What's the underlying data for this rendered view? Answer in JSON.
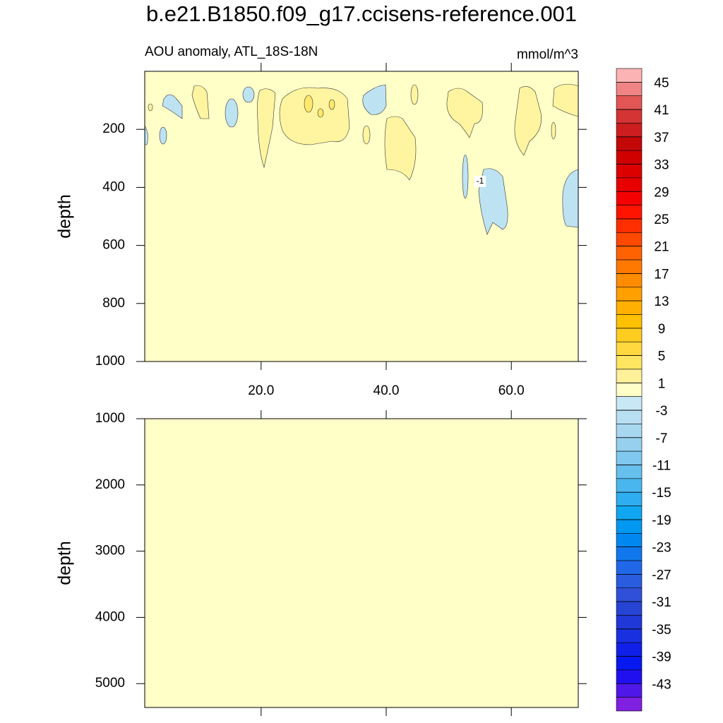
{
  "title": "b.e21.B1850.f09_g17.ccisens-reference.001",
  "chart_data": [
    {
      "type": "contour",
      "subtitle_left": "AOU anomaly, ATL_18S-18N",
      "subtitle_right": "mmol/m^3",
      "ylabel": "depth",
      "xlim": [
        1.4,
        70.7
      ],
      "xticks": [
        {
          "value": 20,
          "label": "20.0"
        },
        {
          "value": 40,
          "label": "40.0"
        },
        {
          "value": 60,
          "label": "60.0"
        }
      ],
      "ylim": [
        0,
        1000
      ],
      "yticks": [
        200,
        400,
        600,
        800,
        1000
      ],
      "y_reversed": true,
      "fill": "#ffffc8",
      "contour_labels": [
        "-1"
      ]
    },
    {
      "type": "contour",
      "ylabel": "depth",
      "xlim": [
        1.4,
        70.7
      ],
      "xticks": [
        20,
        40,
        60
      ],
      "ylim": [
        1000,
        5360
      ],
      "yticks": [
        1000,
        2000,
        3000,
        4000,
        5000
      ],
      "y_reversed": true,
      "fill": "#ffffc8"
    }
  ],
  "colorbar": {
    "clim": [
      -47,
      47
    ],
    "ticks": [
      45,
      41,
      37,
      33,
      29,
      25,
      21,
      17,
      13,
      9,
      5,
      1,
      -3,
      -7,
      -11,
      -15,
      -19,
      -23,
      -27,
      -31,
      -35,
      -39,
      -43
    ],
    "colors": [
      "#fbb3b3",
      "#f08484",
      "#e25656",
      "#d43434",
      "#cc1e1e",
      "#c40808",
      "#d00000",
      "#dc0000",
      "#e80000",
      "#f40000",
      "#ff1400",
      "#ff2e00",
      "#ff4800",
      "#ff6200",
      "#ff7800",
      "#ff8c00",
      "#ff9f00",
      "#ffb000",
      "#ffc000",
      "#ffcd20",
      "#ffd840",
      "#ffe560",
      "#fff09a",
      "#ffffc8",
      "#c8e8f5",
      "#b8e0f2",
      "#a8d8f0",
      "#96d0ee",
      "#80c8ee",
      "#66c0ee",
      "#4ab6ee",
      "#2eaef0",
      "#10a6f2",
      "#0098f0",
      "#0088f0",
      "#1078ec",
      "#2068e8",
      "#2a5ce0",
      "#3050d8",
      "#2844d4",
      "#2038d8",
      "#1830e0",
      "#1020e8",
      "#0818f0",
      "#2010f0",
      "#5018e8",
      "#8020e0"
    ]
  }
}
